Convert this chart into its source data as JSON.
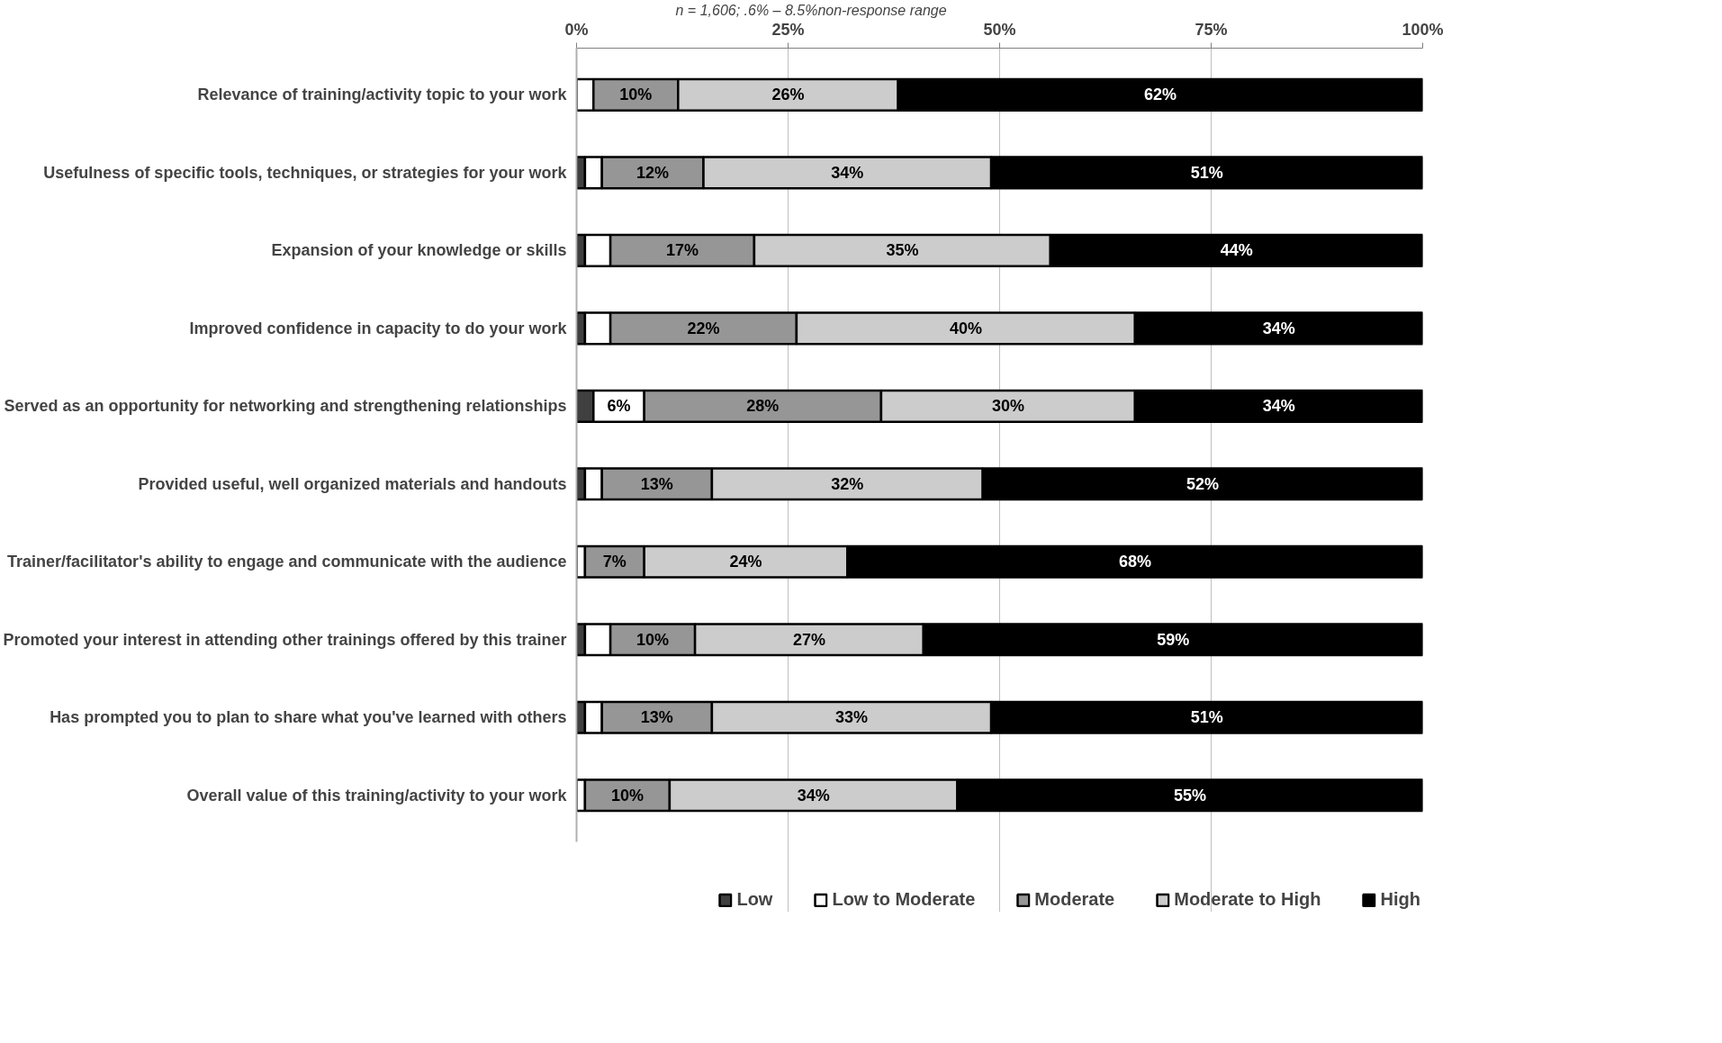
{
  "chart_data": {
    "type": "bar",
    "orientation": "horizontal",
    "stacked": true,
    "annotations": [
      "n = 1,606; .6% – 8.5%non-response range"
    ],
    "categories": [
      "Relevance of training/activity topic to your work",
      "Usefulness of specific tools, techniques, or strategies for your work",
      "Expansion of your knowledge or skills",
      "Improved confidence in capacity to do your work",
      "Served as an opportunity for networking and strengthening relationships",
      "Provided useful, well organized materials and handouts",
      "Trainer/facilitator's ability to engage and communicate with the audience",
      "Promoted your interest in attending other trainings offered by this trainer",
      "Has prompted you to plan to share what you've learned with others",
      "Overall value of this training/activity to your work"
    ],
    "series": [
      {
        "name": "Low",
        "color": "#404040",
        "values": [
          0,
          1,
          1,
          1,
          2,
          1,
          0,
          1,
          1,
          0
        ],
        "value_labels": [
          null,
          null,
          null,
          null,
          null,
          null,
          null,
          null,
          null,
          null
        ]
      },
      {
        "name": "Low to Moderate",
        "color": "#ffffff",
        "values": [
          2,
          2,
          3,
          3,
          6,
          2,
          1,
          3,
          2,
          1
        ],
        "value_labels": [
          null,
          null,
          null,
          null,
          "6%",
          null,
          null,
          null,
          null,
          null
        ]
      },
      {
        "name": "Moderate",
        "color": "#969696",
        "values": [
          10,
          12,
          17,
          22,
          28,
          13,
          7,
          10,
          13,
          10
        ],
        "value_labels": [
          "10%",
          "12%",
          "17%",
          "22%",
          "28%",
          "13%",
          "7%",
          "10%",
          "13%",
          "10%"
        ]
      },
      {
        "name": "Moderate to High",
        "color": "#cccccc",
        "values": [
          26,
          34,
          35,
          40,
          30,
          32,
          24,
          27,
          33,
          34
        ],
        "value_labels": [
          "26%",
          "34%",
          "35%",
          "40%",
          "30%",
          "32%",
          "24%",
          "27%",
          "33%",
          "34%"
        ]
      },
      {
        "name": "High",
        "color": "#000000",
        "values": [
          62,
          51,
          44,
          34,
          34,
          52,
          68,
          59,
          51,
          55
        ],
        "value_labels": [
          "62%",
          "51%",
          "44%",
          "34%",
          "34%",
          "52%",
          "68%",
          "59%",
          "51%",
          "55%"
        ]
      }
    ],
    "xlim": [
      0,
      100
    ],
    "xticks": [
      {
        "value": 0,
        "label": "0%"
      },
      {
        "value": 25,
        "label": "25%"
      },
      {
        "value": 50,
        "label": "50%"
      },
      {
        "value": 75,
        "label": "75%"
      },
      {
        "value": 100,
        "label": "100%"
      }
    ],
    "grid": "x",
    "legend": "bottom"
  }
}
